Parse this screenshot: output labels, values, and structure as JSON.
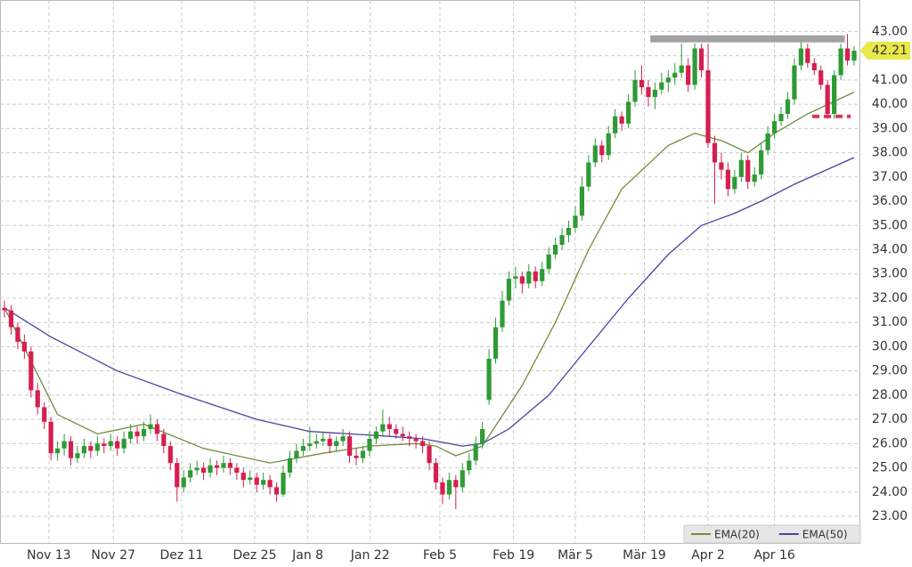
{
  "chart_data": {
    "type": "candlestick",
    "up_color": "#2f9a35",
    "down_color": "#d41f50",
    "ylim": [
      21.9,
      44.3
    ],
    "yticks": [
      {
        "value": 23,
        "label": "23.00"
      },
      {
        "value": 24,
        "label": "24.00"
      },
      {
        "value": 25,
        "label": "25.00"
      },
      {
        "value": 26,
        "label": "26.00"
      },
      {
        "value": 27,
        "label": "27.00"
      },
      {
        "value": 28,
        "label": "28.00"
      },
      {
        "value": 29,
        "label": "29.00"
      },
      {
        "value": 30,
        "label": "30.00"
      },
      {
        "value": 31,
        "label": "31.00"
      },
      {
        "value": 32,
        "label": "32.00"
      },
      {
        "value": 33,
        "label": "33.00"
      },
      {
        "value": 34,
        "label": "34.00"
      },
      {
        "value": 35,
        "label": "35.00"
      },
      {
        "value": 36,
        "label": "36.00"
      },
      {
        "value": 37,
        "label": "37.00"
      },
      {
        "value": 38,
        "label": "38.00"
      },
      {
        "value": 39,
        "label": "39.00"
      },
      {
        "value": 40,
        "label": "40.00"
      },
      {
        "value": 41,
        "label": "41.00"
      },
      {
        "value": 42,
        "label": "42.00"
      },
      {
        "value": 43,
        "label": "43.00"
      }
    ],
    "xticks": [
      {
        "value": 6.7,
        "label": "Nov 13"
      },
      {
        "value": 16.4,
        "label": "Nov 27"
      },
      {
        "value": 26.7,
        "label": "Dez 11"
      },
      {
        "value": 37.7,
        "label": "Dez 25"
      },
      {
        "value": 45.7,
        "label": "Jan 8"
      },
      {
        "value": 55.1,
        "label": "Jan 22"
      },
      {
        "value": 65.6,
        "label": "Feb 5"
      },
      {
        "value": 76.7,
        "label": "Feb 19"
      },
      {
        "value": 86,
        "label": "Mär 5"
      },
      {
        "value": 96.4,
        "label": "Mär 19"
      },
      {
        "value": 106,
        "label": "Apr 2"
      },
      {
        "value": 116,
        "label": "Apr 16"
      }
    ],
    "grid": true,
    "ohlc": [
      [
        31.6,
        31.9,
        31.2,
        31.5
      ],
      [
        31.5,
        31.7,
        30.5,
        30.8
      ],
      [
        30.8,
        31.0,
        29.9,
        30.2
      ],
      [
        30.2,
        30.5,
        29.5,
        29.8
      ],
      [
        29.8,
        30.0,
        27.9,
        28.2
      ],
      [
        28.2,
        28.5,
        27.2,
        27.5
      ],
      [
        27.5,
        27.7,
        26.6,
        26.9
      ],
      [
        26.9,
        27.1,
        25.3,
        25.6
      ],
      [
        25.6,
        26.1,
        25.3,
        25.8
      ],
      [
        25.8,
        26.4,
        25.5,
        26.1
      ],
      [
        26.1,
        26.3,
        25.1,
        25.4
      ],
      [
        25.4,
        25.9,
        25.2,
        25.6
      ],
      [
        25.6,
        26.2,
        25.4,
        25.9
      ],
      [
        25.9,
        26.1,
        25.4,
        25.7
      ],
      [
        25.7,
        26.3,
        25.5,
        26.0
      ],
      [
        26.0,
        26.2,
        25.6,
        25.9
      ],
      [
        25.9,
        26.4,
        25.7,
        26.1
      ],
      [
        26.1,
        26.3,
        25.5,
        25.8
      ],
      [
        25.8,
        26.5,
        25.6,
        26.2
      ],
      [
        26.2,
        26.8,
        26.0,
        26.5
      ],
      [
        26.5,
        26.7,
        26.0,
        26.3
      ],
      [
        26.3,
        26.9,
        26.1,
        26.6
      ],
      [
        26.6,
        27.2,
        26.4,
        26.8
      ],
      [
        26.8,
        27.0,
        26.1,
        26.4
      ],
      [
        26.4,
        26.6,
        25.6,
        25.9
      ],
      [
        25.9,
        26.1,
        24.9,
        25.2
      ],
      [
        25.2,
        25.4,
        23.6,
        24.2
      ],
      [
        24.2,
        24.9,
        24.0,
        24.6
      ],
      [
        24.6,
        25.2,
        24.4,
        24.9
      ],
      [
        24.9,
        25.3,
        24.7,
        25.0
      ],
      [
        25.0,
        25.2,
        24.5,
        24.8
      ],
      [
        24.8,
        25.4,
        24.6,
        25.1
      ],
      [
        25.1,
        25.3,
        24.7,
        25.0
      ],
      [
        25.0,
        25.5,
        24.8,
        25.2
      ],
      [
        25.2,
        25.4,
        24.7,
        25.0
      ],
      [
        25.0,
        25.2,
        24.5,
        24.8
      ],
      [
        24.8,
        25.0,
        24.2,
        24.5
      ],
      [
        24.5,
        24.9,
        24.3,
        24.6
      ],
      [
        24.6,
        24.8,
        24.0,
        24.3
      ],
      [
        24.3,
        24.8,
        24.1,
        24.5
      ],
      [
        24.5,
        24.7,
        23.9,
        24.2
      ],
      [
        24.2,
        24.4,
        23.6,
        23.9
      ],
      [
        23.9,
        25.1,
        23.8,
        24.8
      ],
      [
        24.8,
        25.7,
        24.6,
        25.4
      ],
      [
        25.4,
        26.0,
        25.2,
        25.7
      ],
      [
        25.7,
        26.2,
        25.5,
        25.9
      ],
      [
        25.9,
        26.7,
        25.7,
        26.0
      ],
      [
        26.0,
        26.4,
        25.8,
        26.1
      ],
      [
        26.1,
        26.5,
        25.9,
        26.2
      ],
      [
        26.2,
        26.4,
        25.6,
        25.9
      ],
      [
        25.9,
        26.3,
        25.7,
        26.1
      ],
      [
        26.1,
        26.6,
        25.9,
        26.3
      ],
      [
        26.3,
        26.5,
        25.2,
        25.5
      ],
      [
        25.5,
        25.8,
        25.1,
        25.4
      ],
      [
        25.4,
        25.9,
        25.2,
        25.7
      ],
      [
        25.7,
        26.5,
        25.5,
        26.2
      ],
      [
        26.2,
        26.7,
        26.0,
        26.5
      ],
      [
        26.5,
        27.4,
        26.3,
        26.8
      ],
      [
        26.8,
        27.1,
        26.3,
        26.6
      ],
      [
        26.6,
        26.8,
        26.2,
        26.4
      ],
      [
        26.4,
        26.7,
        26.1,
        26.3
      ],
      [
        26.3,
        26.5,
        25.9,
        26.2
      ],
      [
        26.2,
        26.4,
        25.8,
        26.1
      ],
      [
        26.1,
        26.3,
        25.6,
        25.9
      ],
      [
        25.9,
        26.1,
        24.9,
        25.2
      ],
      [
        25.2,
        25.4,
        24.1,
        24.4
      ],
      [
        24.4,
        24.6,
        23.5,
        23.9
      ],
      [
        23.9,
        24.8,
        23.7,
        24.5
      ],
      [
        24.5,
        24.7,
        23.3,
        24.2
      ],
      [
        24.2,
        25.2,
        24.0,
        24.9
      ],
      [
        24.9,
        25.6,
        24.7,
        25.3
      ],
      [
        25.3,
        26.3,
        25.1,
        26.0
      ],
      [
        26.0,
        26.9,
        25.8,
        26.6
      ],
      [
        27.8,
        29.9,
        27.6,
        29.5
      ],
      [
        29.5,
        31.2,
        29.3,
        30.8
      ],
      [
        30.8,
        32.3,
        30.6,
        31.9
      ],
      [
        31.9,
        33.1,
        31.7,
        32.8
      ],
      [
        32.8,
        33.3,
        32.4,
        32.9
      ],
      [
        32.9,
        33.1,
        32.2,
        32.6
      ],
      [
        32.6,
        33.4,
        32.4,
        33.1
      ],
      [
        33.1,
        33.3,
        32.4,
        32.7
      ],
      [
        32.7,
        33.5,
        32.5,
        33.2
      ],
      [
        33.2,
        34.1,
        33.0,
        33.8
      ],
      [
        33.8,
        34.5,
        33.6,
        34.2
      ],
      [
        34.2,
        34.9,
        34.0,
        34.6
      ],
      [
        34.6,
        35.2,
        34.3,
        34.9
      ],
      [
        34.9,
        35.8,
        34.7,
        35.4
      ],
      [
        35.4,
        37.0,
        35.2,
        36.6
      ],
      [
        36.6,
        37.9,
        36.4,
        37.6
      ],
      [
        37.6,
        38.6,
        37.4,
        38.3
      ],
      [
        38.3,
        38.5,
        37.6,
        37.9
      ],
      [
        37.9,
        39.1,
        37.7,
        38.8
      ],
      [
        38.8,
        39.8,
        38.6,
        39.5
      ],
      [
        39.5,
        39.7,
        38.9,
        39.2
      ],
      [
        39.2,
        40.4,
        39.0,
        40.1
      ],
      [
        40.1,
        41.4,
        39.9,
        41.0
      ],
      [
        41.0,
        41.6,
        40.4,
        40.7
      ],
      [
        40.7,
        41.0,
        39.9,
        40.3
      ],
      [
        40.3,
        40.9,
        39.8,
        40.6
      ],
      [
        40.6,
        41.3,
        40.4,
        40.9
      ],
      [
        40.9,
        41.4,
        40.5,
        41.1
      ],
      [
        41.1,
        41.7,
        40.8,
        41.3
      ],
      [
        41.3,
        42.5,
        41.1,
        41.6
      ],
      [
        41.6,
        41.9,
        40.5,
        40.8
      ],
      [
        40.8,
        42.5,
        40.6,
        42.3
      ],
      [
        42.3,
        42.5,
        41.1,
        41.4
      ],
      [
        41.4,
        42.5,
        38.2,
        38.4
      ],
      [
        38.4,
        38.7,
        35.9,
        37.6
      ],
      [
        37.6,
        38.0,
        36.9,
        37.3
      ],
      [
        37.3,
        37.6,
        36.2,
        36.5
      ],
      [
        36.5,
        37.3,
        36.3,
        37.0
      ],
      [
        37.0,
        38.0,
        36.8,
        37.7
      ],
      [
        37.7,
        37.9,
        36.5,
        36.8
      ],
      [
        36.8,
        37.4,
        36.6,
        37.1
      ],
      [
        37.1,
        38.4,
        36.9,
        38.1
      ],
      [
        38.1,
        39.1,
        37.9,
        38.8
      ],
      [
        38.8,
        39.6,
        38.6,
        39.3
      ],
      [
        39.3,
        39.9,
        39.1,
        39.6
      ],
      [
        39.6,
        40.5,
        39.4,
        40.2
      ],
      [
        40.2,
        41.9,
        40.0,
        41.6
      ],
      [
        41.6,
        42.6,
        41.4,
        42.3
      ],
      [
        42.3,
        42.5,
        41.5,
        41.7
      ],
      [
        41.7,
        41.9,
        41.2,
        41.4
      ],
      [
        41.4,
        41.6,
        40.6,
        40.8
      ],
      [
        40.8,
        41.0,
        39.4,
        39.6
      ],
      [
        39.6,
        41.4,
        39.4,
        41.2
      ],
      [
        41.2,
        42.5,
        41.0,
        42.3
      ],
      [
        42.3,
        42.9,
        41.6,
        41.8
      ],
      [
        41.8,
        42.4,
        41.6,
        42.21
      ]
    ],
    "series": [
      {
        "name": "EMA(20)",
        "color": "#6f8f3a",
        "x": [
          0,
          8,
          14,
          21,
          30,
          40,
          48,
          55,
          62,
          65,
          68,
          72,
          78,
          83,
          88,
          93,
          100,
          104,
          108,
          112,
          116,
          121,
          128
        ],
        "values": [
          31.6,
          27.2,
          26.4,
          26.8,
          25.8,
          25.2,
          25.6,
          25.9,
          26.0,
          25.9,
          25.5,
          25.9,
          28.4,
          31.0,
          34.0,
          36.5,
          38.3,
          38.8,
          38.5,
          38.0,
          38.8,
          39.6,
          40.5
        ]
      },
      {
        "name": "EMA(50)",
        "color": "#4545a5",
        "x": [
          0,
          7,
          17,
          27,
          38,
          46,
          58,
          63,
          69,
          72,
          76,
          82,
          88,
          94,
          100,
          105,
          110,
          114,
          119,
          128
        ],
        "values": [
          31.6,
          30.4,
          29.0,
          28.0,
          27.0,
          26.5,
          26.3,
          26.2,
          25.9,
          26.0,
          26.6,
          28.0,
          30.0,
          32.0,
          33.8,
          35.0,
          35.5,
          36.0,
          36.7,
          37.8
        ]
      }
    ],
    "annotations": [
      {
        "value": 42.7,
        "from": 97.3,
        "to": 126.6,
        "color": "#999999",
        "style": "solid"
      },
      {
        "value": 39.5,
        "from": 121.7,
        "to": 127.5,
        "color": "#d41f50",
        "style": "dashed"
      }
    ]
  }
}
